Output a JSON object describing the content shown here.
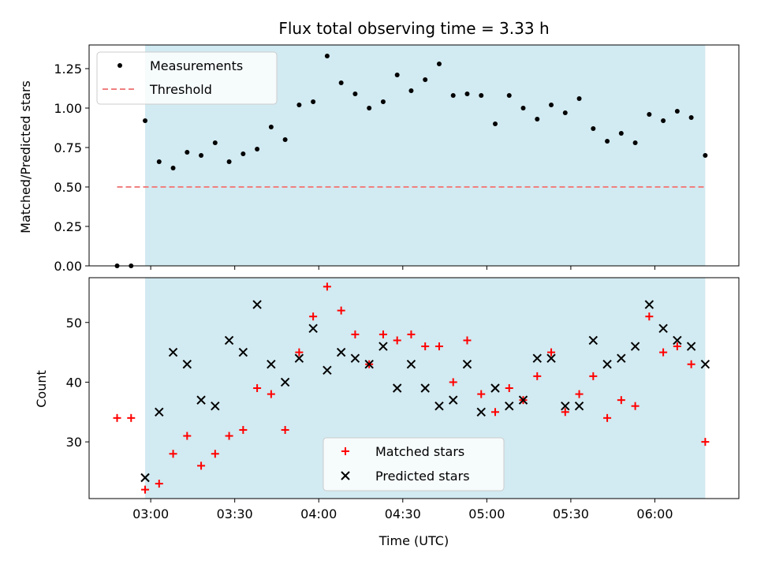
{
  "chart_data": [
    {
      "type": "scatter",
      "title": "Flux total observing time = 3.33 h",
      "xlabel": "",
      "ylabel": "Matched/Predicted stars",
      "ylim": [
        0,
        1.4
      ],
      "yticks": [
        "0.00",
        "0.25",
        "0.50",
        "0.75",
        "1.00",
        "1.25"
      ],
      "x_range": [
        "02:38",
        "06:30"
      ],
      "shaded_interval": [
        "02:58",
        "06:18"
      ],
      "shade_color": "#add8e6",
      "series": [
        {
          "name": "Measurements",
          "marker": "dot",
          "color": "#000000",
          "x": [
            "02:48",
            "02:53",
            "02:58",
            "03:03",
            "03:08",
            "03:13",
            "03:18",
            "03:23",
            "03:28",
            "03:33",
            "03:38",
            "03:43",
            "03:48",
            "03:53",
            "03:58",
            "04:03",
            "04:08",
            "04:13",
            "04:18",
            "04:23",
            "04:28",
            "04:33",
            "04:38",
            "04:43",
            "04:48",
            "04:53",
            "04:58",
            "05:03",
            "05:08",
            "05:13",
            "05:18",
            "05:23",
            "05:28",
            "05:33",
            "05:38",
            "05:43",
            "05:48",
            "05:53",
            "05:58",
            "06:03",
            "06:08",
            "06:13",
            "06:18"
          ],
          "y": [
            0.0,
            0.0,
            0.92,
            0.66,
            0.62,
            0.72,
            0.7,
            0.78,
            0.66,
            0.71,
            0.74,
            0.88,
            0.8,
            1.02,
            1.04,
            1.33,
            1.16,
            1.09,
            1.0,
            1.04,
            1.21,
            1.11,
            1.18,
            1.28,
            1.08,
            1.09,
            1.08,
            0.9,
            1.08,
            1.0,
            0.93,
            1.02,
            0.97,
            1.06,
            0.87,
            0.79,
            0.84,
            0.78,
            0.96,
            0.92,
            0.98,
            0.94,
            0.7
          ]
        },
        {
          "name": "Threshold",
          "type": "line",
          "style": "dashed",
          "color": "#f08080",
          "x": [
            "02:48",
            "06:18"
          ],
          "y": [
            0.5,
            0.5
          ]
        }
      ],
      "legend": "top-left"
    },
    {
      "type": "scatter",
      "title": "",
      "xlabel": "Time (UTC)",
      "ylabel": "Count",
      "ylim": [
        20.5,
        57.5
      ],
      "yticks": [
        "30",
        "40",
        "50"
      ],
      "xticks": [
        "03:00",
        "03:30",
        "04:00",
        "04:30",
        "05:00",
        "05:30",
        "06:00"
      ],
      "x_range": [
        "02:38",
        "06:30"
      ],
      "shaded_interval": [
        "02:58",
        "06:18"
      ],
      "shade_color": "#add8e6",
      "series": [
        {
          "name": "Matched stars",
          "marker": "plus",
          "color": "#ff0000",
          "x": [
            "02:48",
            "02:53",
            "02:58",
            "03:03",
            "03:08",
            "03:13",
            "03:18",
            "03:23",
            "03:28",
            "03:33",
            "03:38",
            "03:43",
            "03:48",
            "03:53",
            "03:58",
            "04:03",
            "04:08",
            "04:13",
            "04:18",
            "04:23",
            "04:28",
            "04:33",
            "04:38",
            "04:43",
            "04:48",
            "04:53",
            "04:58",
            "05:03",
            "05:08",
            "05:13",
            "05:18",
            "05:23",
            "05:28",
            "05:33",
            "05:38",
            "05:43",
            "05:48",
            "05:53",
            "05:58",
            "06:03",
            "06:08",
            "06:13",
            "06:18"
          ],
          "y": [
            34,
            34,
            22,
            23,
            28,
            31,
            26,
            28,
            31,
            32,
            39,
            38,
            32,
            45,
            51,
            56,
            52,
            48,
            43,
            48,
            47,
            48,
            46,
            46,
            40,
            47,
            38,
            35,
            39,
            37,
            41,
            45,
            35,
            38,
            41,
            34,
            37,
            36,
            51,
            45,
            46,
            43,
            30
          ]
        },
        {
          "name": "Predicted stars",
          "marker": "x",
          "color": "#000000",
          "x": [
            "02:58",
            "03:03",
            "03:08",
            "03:13",
            "03:18",
            "03:23",
            "03:28",
            "03:33",
            "03:38",
            "03:43",
            "03:48",
            "03:53",
            "03:58",
            "04:03",
            "04:08",
            "04:13",
            "04:18",
            "04:23",
            "04:28",
            "04:33",
            "04:38",
            "04:43",
            "04:48",
            "04:53",
            "04:58",
            "05:03",
            "05:08",
            "05:13",
            "05:18",
            "05:23",
            "05:28",
            "05:33",
            "05:38",
            "05:43",
            "05:48",
            "05:53",
            "05:58",
            "06:03",
            "06:08",
            "06:13",
            "06:18"
          ],
          "y": [
            24,
            35,
            45,
            43,
            37,
            36,
            47,
            45,
            53,
            43,
            40,
            44,
            49,
            42,
            45,
            44,
            43,
            46,
            39,
            43,
            39,
            36,
            37,
            43,
            35,
            39,
            36,
            37,
            44,
            44,
            36,
            36,
            47,
            43,
            44,
            46,
            53,
            49,
            47,
            46,
            43
          ]
        }
      ],
      "legend": "bottom-center"
    }
  ]
}
